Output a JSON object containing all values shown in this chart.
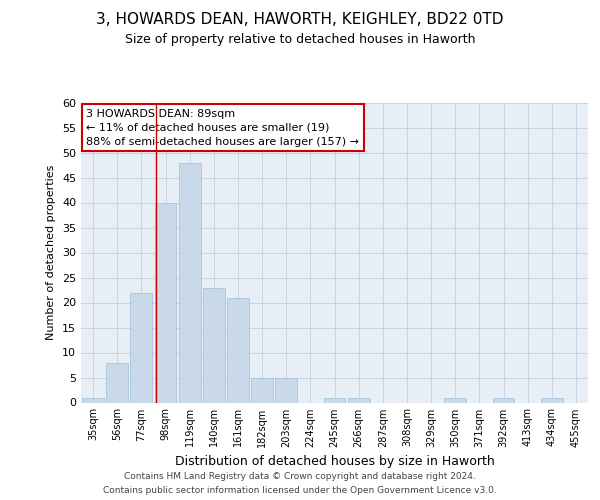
{
  "title1": "3, HOWARDS DEAN, HAWORTH, KEIGHLEY, BD22 0TD",
  "title2": "Size of property relative to detached houses in Haworth",
  "xlabel": "Distribution of detached houses by size in Haworth",
  "ylabel": "Number of detached properties",
  "bar_labels": [
    "35sqm",
    "56sqm",
    "77sqm",
    "98sqm",
    "119sqm",
    "140sqm",
    "161sqm",
    "182sqm",
    "203sqm",
    "224sqm",
    "245sqm",
    "266sqm",
    "287sqm",
    "308sqm",
    "329sqm",
    "350sqm",
    "371sqm",
    "392sqm",
    "413sqm",
    "434sqm",
    "455sqm"
  ],
  "bar_values": [
    1,
    8,
    22,
    40,
    48,
    23,
    21,
    5,
    5,
    0,
    1,
    1,
    0,
    0,
    0,
    1,
    0,
    1,
    0,
    1,
    0
  ],
  "bar_color": "#c9d9ea",
  "bar_edgecolor": "#a8c4dc",
  "grid_color": "#c8d4e0",
  "background_color": "#e8eef5",
  "vline_x": 2.62,
  "vline_color": "#cc0000",
  "annotation_text": "3 HOWARDS DEAN: 89sqm\n← 11% of detached houses are smaller (19)\n88% of semi-detached houses are larger (157) →",
  "annotation_box_color": "#ffffff",
  "annotation_box_edgecolor": "#cc0000",
  "footer1": "Contains HM Land Registry data © Crown copyright and database right 2024.",
  "footer2": "Contains public sector information licensed under the Open Government Licence v3.0.",
  "ylim": [
    0,
    60
  ],
  "yticks": [
    0,
    5,
    10,
    15,
    20,
    25,
    30,
    35,
    40,
    45,
    50,
    55,
    60
  ],
  "title1_fontsize": 11,
  "title2_fontsize": 9,
  "ylabel_fontsize": 8,
  "xlabel_fontsize": 9,
  "tick_fontsize": 7,
  "footer_fontsize": 6.5,
  "annot_fontsize": 8
}
